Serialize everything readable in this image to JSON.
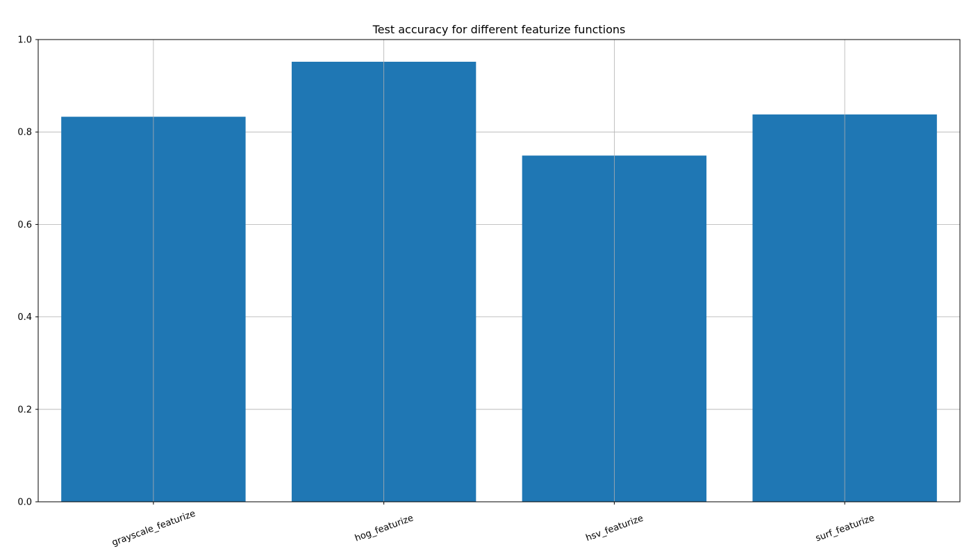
{
  "chart_data": {
    "type": "bar",
    "title": "Test accuracy for different featurize functions",
    "xlabel": "",
    "ylabel": "",
    "categories": [
      "grayscale_featurize",
      "hog_featurize",
      "hsv_featurize",
      "surf_featurize"
    ],
    "values": [
      0.833,
      0.952,
      0.749,
      0.838
    ],
    "ylim": [
      0,
      1.0
    ],
    "yticks": [
      "0.0",
      "0.2",
      "0.4",
      "0.6",
      "0.8",
      "1.0"
    ],
    "grid": true,
    "bar_color": "#1f77b4",
    "grid_color": "#b0b0b0",
    "xtick_rotation_deg": -20
  }
}
